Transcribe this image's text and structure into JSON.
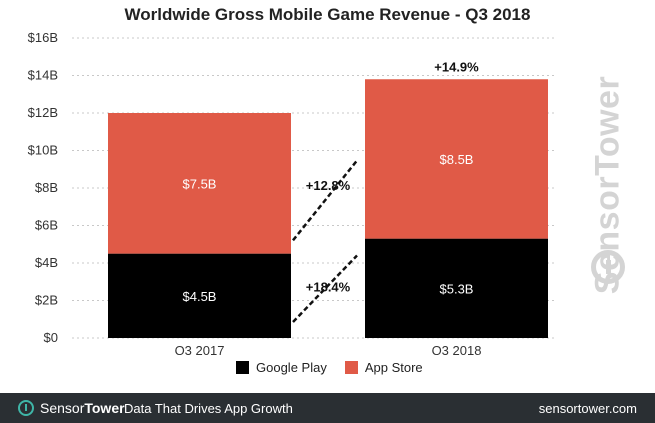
{
  "chart_data": {
    "type": "bar",
    "stacked": true,
    "title": "Worldwide Gross Mobile Game Revenue - Q3 2018",
    "categories": [
      "Q3 2017",
      "Q3 2018"
    ],
    "series": [
      {
        "name": "Google Play",
        "values": [
          4.5,
          5.3
        ],
        "labels": [
          "$4.5B",
          "$5.3B"
        ],
        "color": "#000000"
      },
      {
        "name": "App Store",
        "values": [
          7.5,
          8.5
        ],
        "labels": [
          "$7.5B",
          "$8.5B"
        ],
        "color": "#e05a47"
      }
    ],
    "ylim": [
      0,
      16
    ],
    "yticks": [
      0,
      2,
      4,
      6,
      8,
      10,
      12,
      14,
      16
    ],
    "ytick_labels": [
      "$0",
      "$2B",
      "$4B",
      "$6B",
      "$8B",
      "$10B",
      "$12B",
      "$14B",
      "$16B"
    ],
    "annotations": {
      "total_growth": "+14.9%",
      "app_store_growth": "+12.8%",
      "google_play_growth": "+18.4%"
    },
    "grid": true,
    "legend_position": "bottom"
  },
  "watermark": "SensorTower",
  "footer": {
    "brand_part1": "Sensor",
    "brand_part2": "Tower",
    "tagline": "Data That Drives App Growth",
    "url": "sensortower.com"
  }
}
